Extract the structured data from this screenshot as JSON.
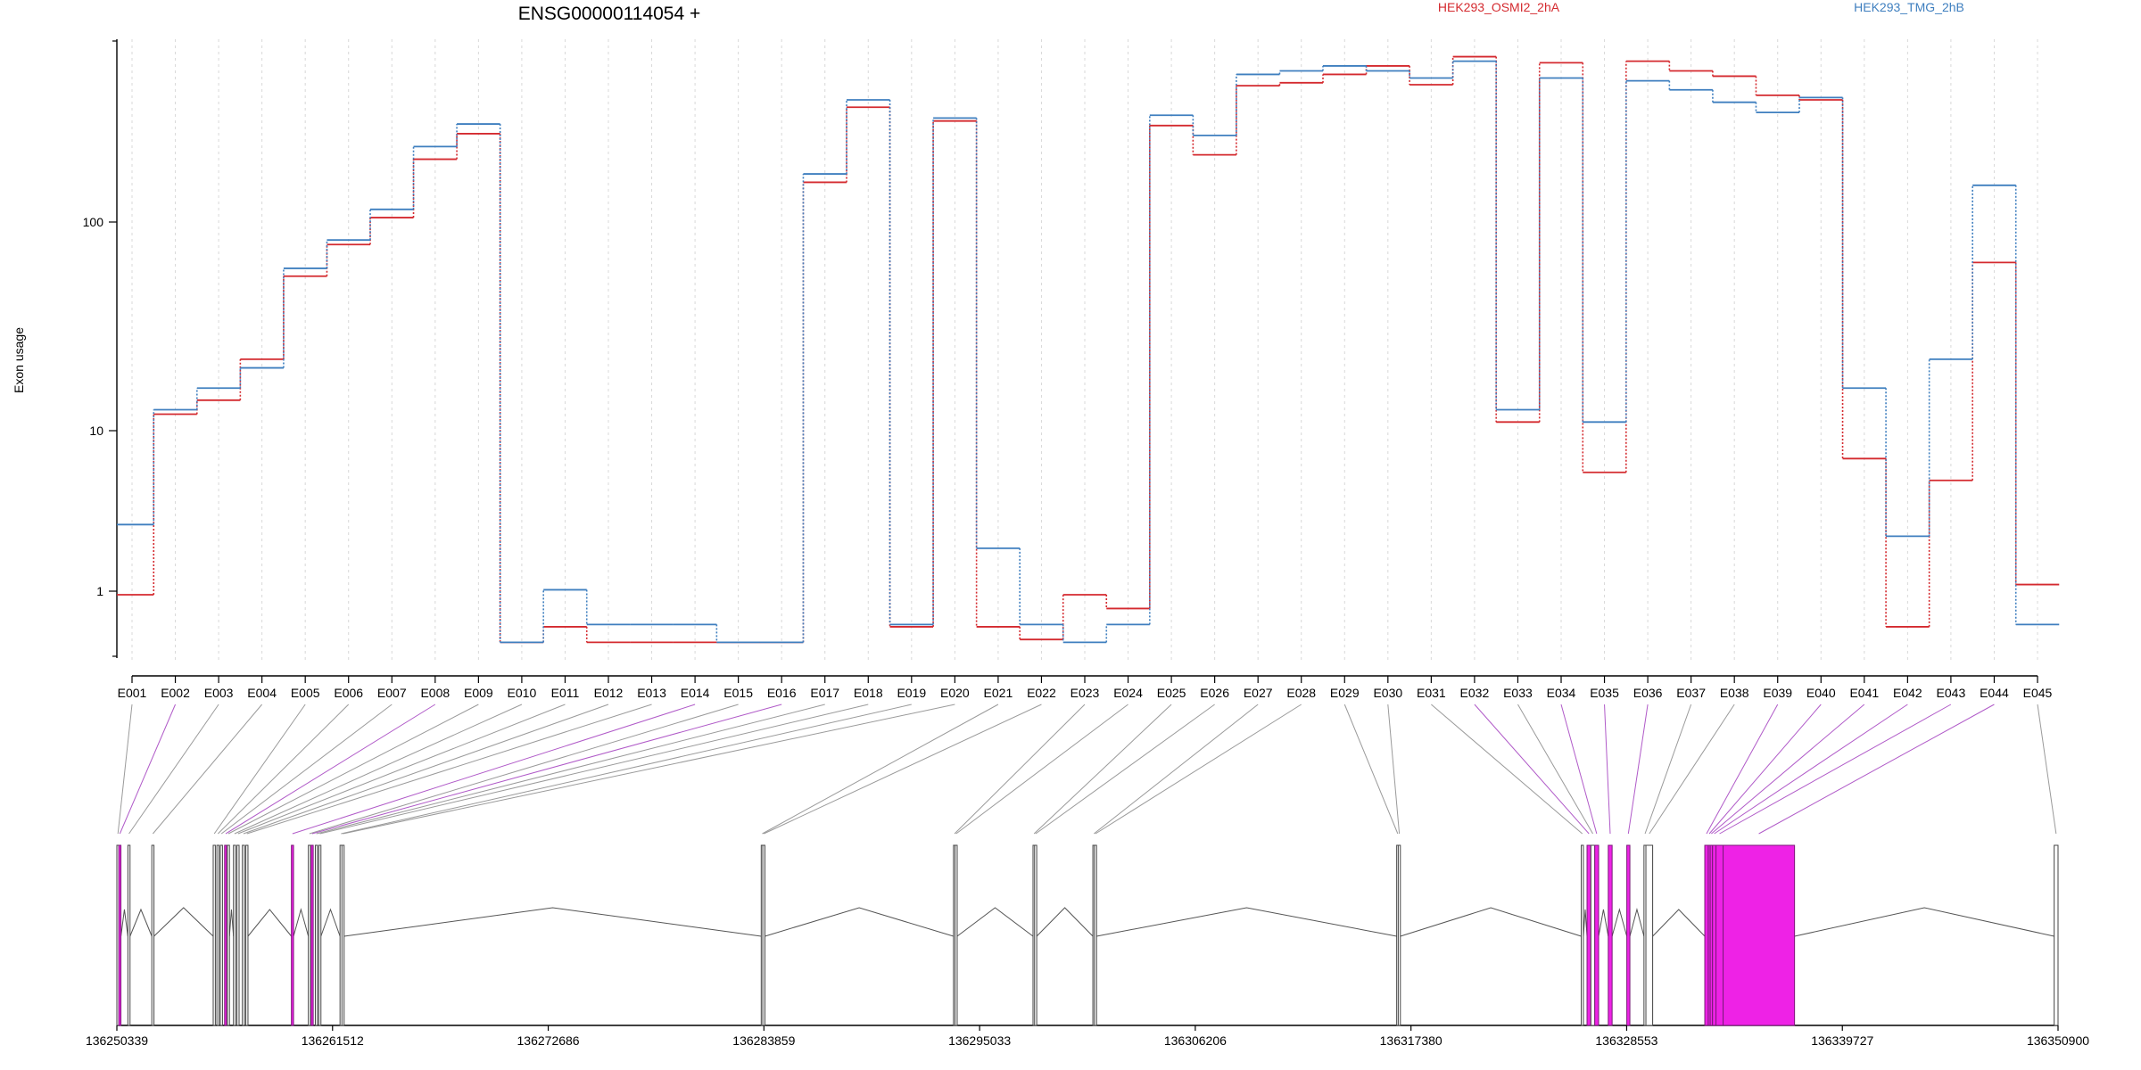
{
  "chart_data": {
    "type": "line",
    "title": "ENSG00000114054 +",
    "ylabel": "Exon usage",
    "xlabel": "",
    "yscale": "log",
    "ylim": [
      0.5,
      800
    ],
    "grid": "vertical-dashed",
    "legend_placement": "top",
    "yticks": [
      {
        "value": 1,
        "label": "1"
      },
      {
        "value": 10,
        "label": "10"
      },
      {
        "value": 100,
        "label": "100"
      }
    ],
    "categories": [
      "E001",
      "E002",
      "E003",
      "E004",
      "E005",
      "E006",
      "E007",
      "E008",
      "E009",
      "E010",
      "E011",
      "E012",
      "E013",
      "E014",
      "E015",
      "E016",
      "E017",
      "E018",
      "E019",
      "E020",
      "E021",
      "E022",
      "E023",
      "E024",
      "E025",
      "E026",
      "E027",
      "E028",
      "E029",
      "E030",
      "E031",
      "E032",
      "E033",
      "E034",
      "E035",
      "E036",
      "E037",
      "E038",
      "E039",
      "E040",
      "E041",
      "E042",
      "E043",
      "E044",
      "E045"
    ],
    "series": [
      {
        "name": "HEK293_OSMI2_2hA",
        "color": "#d42a2f",
        "values": [
          0.95,
          12,
          14,
          22,
          55,
          78,
          105,
          200,
          265,
          0.48,
          0.6,
          0.48,
          0.48,
          0.48,
          0.48,
          0.48,
          155,
          355,
          0.6,
          305,
          0.6,
          0.5,
          0.95,
          0.78,
          290,
          210,
          450,
          465,
          510,
          560,
          455,
          620,
          11,
          580,
          5.5,
          590,
          530,
          500,
          405,
          385,
          6.7,
          0.6,
          4.9,
          64,
          1.1
        ]
      },
      {
        "name": "HEK293_TMG_2hB",
        "color": "#3f7fbf",
        "values": [
          2.6,
          12.6,
          16,
          20,
          60,
          82,
          115,
          230,
          295,
          0.48,
          1.02,
          0.62,
          0.62,
          0.62,
          0.48,
          0.48,
          170,
          385,
          0.62,
          315,
          1.85,
          0.62,
          0.48,
          0.62,
          325,
          260,
          510,
          530,
          560,
          530,
          490,
          590,
          12.6,
          490,
          11,
          475,
          430,
          375,
          335,
          395,
          16,
          2.2,
          22,
          150,
          0.62
        ]
      }
    ],
    "gene_model": {
      "coordinate_ticks": [
        {
          "value": 136250339,
          "label": "136250339"
        },
        {
          "value": 136261512,
          "label": "136261512"
        },
        {
          "value": 136272686,
          "label": "136272686"
        },
        {
          "value": 136283859,
          "label": "136283859"
        },
        {
          "value": 136295033,
          "label": "136295033"
        },
        {
          "value": 136306206,
          "label": "136306206"
        },
        {
          "value": 136317380,
          "label": "136317380"
        },
        {
          "value": 136328553,
          "label": "136328553"
        },
        {
          "value": 136339727,
          "label": "136339727"
        },
        {
          "value": 136350900,
          "label": "136350900"
        }
      ],
      "range": [
        136250339,
        136350900
      ],
      "exon_colors": {
        "plain": "#ffffff",
        "significant": "#ee22e6",
        "outline": "#444444",
        "intron": "#555555",
        "link_plain": "#9a9a9a",
        "link_significant": "#b05ac8"
      },
      "exons": [
        {
          "id": "E001",
          "start": 136250339,
          "end": 136250439,
          "sig": false
        },
        {
          "id": "E002",
          "start": 136250439,
          "end": 136250520,
          "sig": true
        },
        {
          "id": "E003",
          "start": 136250910,
          "end": 136250990,
          "sig": false
        },
        {
          "id": "E004",
          "start": 136252150,
          "end": 136252230,
          "sig": false
        },
        {
          "id": "E005",
          "start": 136255330,
          "end": 136255410,
          "sig": false
        },
        {
          "id": "E006",
          "start": 136255520,
          "end": 136255600,
          "sig": false
        },
        {
          "id": "E007",
          "start": 136255700,
          "end": 136255780,
          "sig": false
        },
        {
          "id": "E008",
          "start": 136255920,
          "end": 136256000,
          "sig": true
        },
        {
          "id": "E009",
          "start": 136256060,
          "end": 136256140,
          "sig": false
        },
        {
          "id": "E010",
          "start": 136256380,
          "end": 136256460,
          "sig": false
        },
        {
          "id": "E011",
          "start": 136256560,
          "end": 136256640,
          "sig": false
        },
        {
          "id": "E012",
          "start": 136256840,
          "end": 136256920,
          "sig": false
        },
        {
          "id": "E013",
          "start": 136257020,
          "end": 136257100,
          "sig": false
        },
        {
          "id": "E014",
          "start": 136259380,
          "end": 136259460,
          "sig": true
        },
        {
          "id": "E015",
          "start": 136260260,
          "end": 136260340,
          "sig": false
        },
        {
          "id": "E016",
          "start": 136260400,
          "end": 136260480,
          "sig": true
        },
        {
          "id": "E017",
          "start": 136260620,
          "end": 136260700,
          "sig": false
        },
        {
          "id": "E018",
          "start": 136260800,
          "end": 136260880,
          "sig": false
        },
        {
          "id": "E019",
          "start": 136261900,
          "end": 136261980,
          "sig": false
        },
        {
          "id": "E020",
          "start": 136262000,
          "end": 136262080,
          "sig": false
        },
        {
          "id": "E021",
          "start": 136283720,
          "end": 136283800,
          "sig": false
        },
        {
          "id": "E022",
          "start": 136283800,
          "end": 136283880,
          "sig": false
        },
        {
          "id": "E023",
          "start": 136293680,
          "end": 136293760,
          "sig": false
        },
        {
          "id": "E024",
          "start": 136293760,
          "end": 136293840,
          "sig": false
        },
        {
          "id": "E025",
          "start": 136297800,
          "end": 136297880,
          "sig": false
        },
        {
          "id": "E026",
          "start": 136297880,
          "end": 136297960,
          "sig": false
        },
        {
          "id": "E027",
          "start": 136300900,
          "end": 136300980,
          "sig": false
        },
        {
          "id": "E028",
          "start": 136300980,
          "end": 136301060,
          "sig": false
        },
        {
          "id": "E029",
          "start": 136316640,
          "end": 136316720,
          "sig": false
        },
        {
          "id": "E030",
          "start": 136316720,
          "end": 136316800,
          "sig": false
        },
        {
          "id": "E031",
          "start": 136326200,
          "end": 136326300,
          "sig": false
        },
        {
          "id": "E032",
          "start": 136326500,
          "end": 136326700,
          "sig": true
        },
        {
          "id": "E033",
          "start": 136326700,
          "end": 136326900,
          "sig": false
        },
        {
          "id": "E034",
          "start": 136326900,
          "end": 136327100,
          "sig": true
        },
        {
          "id": "E035",
          "start": 136327600,
          "end": 136327800,
          "sig": true
        },
        {
          "id": "E036",
          "start": 136328560,
          "end": 136328720,
          "sig": true
        },
        {
          "id": "E037",
          "start": 136329450,
          "end": 136329550,
          "sig": false
        },
        {
          "id": "E038",
          "start": 136329550,
          "end": 136329900,
          "sig": false
        },
        {
          "id": "E039",
          "start": 136332600,
          "end": 136332780,
          "sig": true
        },
        {
          "id": "E040",
          "start": 136332780,
          "end": 136332880,
          "sig": true
        },
        {
          "id": "E041",
          "start": 136332880,
          "end": 136333000,
          "sig": true
        },
        {
          "id": "E042",
          "start": 136333000,
          "end": 136333180,
          "sig": true
        },
        {
          "id": "E043",
          "start": 136333180,
          "end": 136333550,
          "sig": true
        },
        {
          "id": "E044",
          "start": 136333550,
          "end": 136337250,
          "sig": true
        },
        {
          "id": "E045",
          "start": 136350700,
          "end": 136350900,
          "sig": false
        }
      ]
    }
  }
}
